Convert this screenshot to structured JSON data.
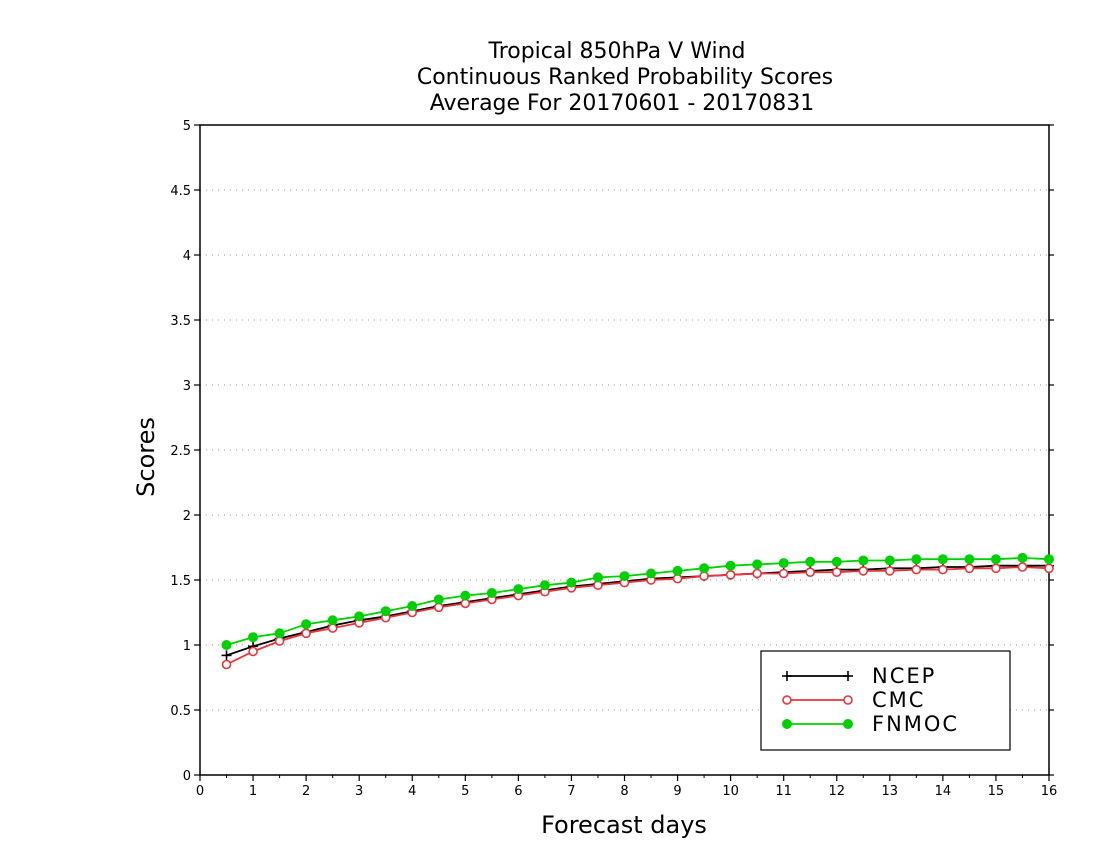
{
  "chart_data": {
    "type": "line",
    "title_lines": [
      "Tropical 850hPa V Wind",
      "Continuous Ranked Probability Scores",
      "Average For 20170601 - 20170831"
    ],
    "xlabel": "Forecast days",
    "ylabel": "Scores",
    "xlim": [
      0,
      16
    ],
    "ylim": [
      0,
      5
    ],
    "xticks": [
      0,
      1,
      2,
      3,
      4,
      5,
      6,
      7,
      8,
      9,
      10,
      11,
      12,
      13,
      14,
      15,
      16
    ],
    "yticks": [
      0,
      0.5,
      1,
      1.5,
      2,
      2.5,
      3,
      3.5,
      4,
      4.5,
      5
    ],
    "ytick_labels": [
      "0",
      "0.5",
      "1",
      "1.5",
      "2",
      "2.5",
      "3",
      "3.5",
      "4",
      "4.5",
      "5"
    ],
    "grid": "horizontal dotted",
    "legend_position": "bottom-right",
    "x": [
      0.5,
      1.0,
      1.5,
      2.0,
      2.5,
      3.0,
      3.5,
      4.0,
      4.5,
      5.0,
      5.5,
      6.0,
      6.5,
      7.0,
      7.5,
      8.0,
      8.5,
      9.0,
      9.5,
      10.0,
      10.5,
      11.0,
      11.5,
      12.0,
      12.5,
      13.0,
      13.5,
      14.0,
      14.5,
      15.0,
      15.5,
      16.0
    ],
    "series": [
      {
        "name": "NCEP",
        "color": "#000000",
        "marker": "plus",
        "values": [
          0.92,
          0.99,
          1.05,
          1.1,
          1.15,
          1.19,
          1.22,
          1.26,
          1.3,
          1.33,
          1.36,
          1.39,
          1.42,
          1.45,
          1.47,
          1.49,
          1.51,
          1.52,
          1.53,
          1.54,
          1.55,
          1.56,
          1.57,
          1.58,
          1.58,
          1.59,
          1.59,
          1.6,
          1.6,
          1.61,
          1.61,
          1.61
        ]
      },
      {
        "name": "CMC",
        "color": "#e8343a",
        "marker": "open-circle",
        "values": [
          0.85,
          0.95,
          1.03,
          1.09,
          1.13,
          1.17,
          1.21,
          1.25,
          1.29,
          1.32,
          1.35,
          1.38,
          1.41,
          1.44,
          1.46,
          1.48,
          1.5,
          1.51,
          1.53,
          1.54,
          1.55,
          1.55,
          1.56,
          1.56,
          1.57,
          1.57,
          1.58,
          1.58,
          1.59,
          1.59,
          1.6,
          1.59
        ]
      },
      {
        "name": "FNMOC",
        "color": "#00d000",
        "marker": "filled-circle",
        "values": [
          1.0,
          1.06,
          1.09,
          1.16,
          1.19,
          1.22,
          1.26,
          1.3,
          1.35,
          1.38,
          1.4,
          1.43,
          1.46,
          1.48,
          1.52,
          1.53,
          1.55,
          1.57,
          1.59,
          1.61,
          1.62,
          1.63,
          1.64,
          1.64,
          1.65,
          1.65,
          1.66,
          1.66,
          1.66,
          1.66,
          1.67,
          1.66
        ]
      }
    ]
  }
}
